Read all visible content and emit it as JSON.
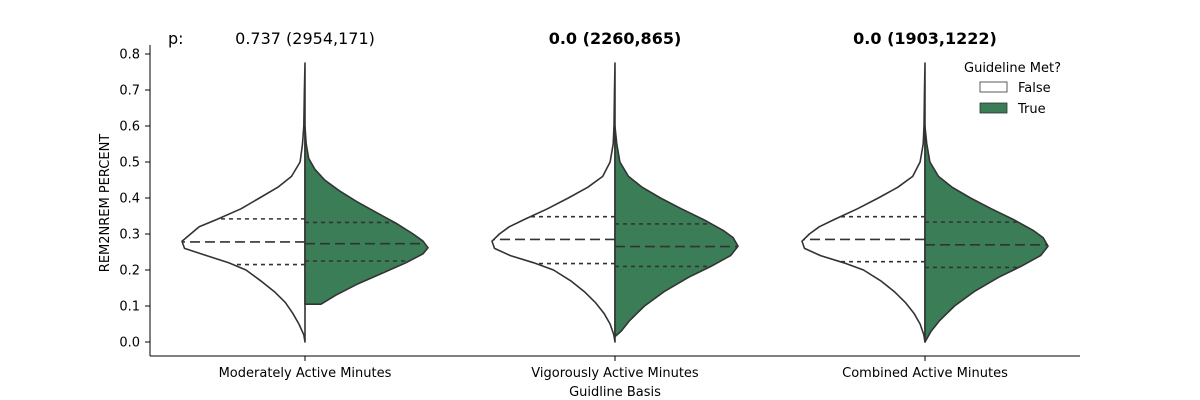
{
  "chart_data": {
    "type": "violin",
    "xlabel": "Guidline Basis",
    "ylabel": "REM2NREM PERCENT",
    "ylim": [
      -0.04,
      0.82
    ],
    "yticks": [
      0.0,
      0.1,
      0.2,
      0.3,
      0.4,
      0.5,
      0.6,
      0.7,
      0.8
    ],
    "ytick_labels": [
      "0.0",
      "0.1",
      "0.2",
      "0.3",
      "0.4",
      "0.5",
      "0.6",
      "0.7",
      "0.8"
    ],
    "categories": [
      "Moderately Active Minutes",
      "Vigorously Active Minutes",
      "Combined Active Minutes"
    ],
    "p_prefix": "p:",
    "p_values": [
      {
        "text": "0.737 (2954,171)",
        "bold": false
      },
      {
        "text": "0.0 (2260,865)",
        "bold": true
      },
      {
        "text": "0.0 (1903,1222)",
        "bold": true
      }
    ],
    "legend": {
      "title": "Guideline Met?",
      "position": "upper right",
      "entries": [
        {
          "label": "False",
          "color": "#ffffff"
        },
        {
          "label": "True",
          "color": "#3a7d57"
        }
      ]
    },
    "series": [
      {
        "name": "False",
        "side": "left",
        "color": "#ffffff",
        "violins": [
          {
            "q1": 0.215,
            "median": 0.278,
            "q3": 0.342,
            "profile": [
              [
                0.0,
                0.0
              ],
              [
                0.02,
                0.01
              ],
              [
                0.05,
                0.05
              ],
              [
                0.08,
                0.1
              ],
              [
                0.11,
                0.16
              ],
              [
                0.14,
                0.25
              ],
              [
                0.17,
                0.36
              ],
              [
                0.2,
                0.48
              ],
              [
                0.22,
                0.62
              ],
              [
                0.24,
                0.8
              ],
              [
                0.26,
                0.98
              ],
              [
                0.28,
                1.0
              ],
              [
                0.3,
                0.93
              ],
              [
                0.32,
                0.86
              ],
              [
                0.34,
                0.72
              ],
              [
                0.37,
                0.52
              ],
              [
                0.4,
                0.37
              ],
              [
                0.43,
                0.22
              ],
              [
                0.46,
                0.11
              ],
              [
                0.5,
                0.04
              ],
              [
                0.55,
                0.02
              ],
              [
                0.6,
                0.01
              ],
              [
                0.7,
                0.005
              ],
              [
                0.775,
                0.0
              ]
            ]
          },
          {
            "q1": 0.218,
            "median": 0.285,
            "q3": 0.348,
            "profile": [
              [
                0.0,
                0.0
              ],
              [
                0.02,
                0.01
              ],
              [
                0.05,
                0.04
              ],
              [
                0.08,
                0.09
              ],
              [
                0.11,
                0.16
              ],
              [
                0.14,
                0.25
              ],
              [
                0.17,
                0.36
              ],
              [
                0.2,
                0.5
              ],
              [
                0.22,
                0.66
              ],
              [
                0.24,
                0.85
              ],
              [
                0.26,
                0.98
              ],
              [
                0.28,
                1.0
              ],
              [
                0.3,
                0.94
              ],
              [
                0.32,
                0.86
              ],
              [
                0.34,
                0.74
              ],
              [
                0.37,
                0.55
              ],
              [
                0.4,
                0.38
              ],
              [
                0.43,
                0.22
              ],
              [
                0.46,
                0.1
              ],
              [
                0.5,
                0.04
              ],
              [
                0.55,
                0.015
              ],
              [
                0.6,
                0.008
              ],
              [
                0.7,
                0.004
              ],
              [
                0.775,
                0.0
              ]
            ]
          },
          {
            "q1": 0.223,
            "median": 0.285,
            "q3": 0.348,
            "profile": [
              [
                0.0,
                0.0
              ],
              [
                0.02,
                0.01
              ],
              [
                0.05,
                0.04
              ],
              [
                0.08,
                0.09
              ],
              [
                0.11,
                0.16
              ],
              [
                0.14,
                0.25
              ],
              [
                0.17,
                0.36
              ],
              [
                0.2,
                0.5
              ],
              [
                0.22,
                0.66
              ],
              [
                0.24,
                0.85
              ],
              [
                0.26,
                0.98
              ],
              [
                0.28,
                1.0
              ],
              [
                0.3,
                0.94
              ],
              [
                0.32,
                0.86
              ],
              [
                0.34,
                0.74
              ],
              [
                0.37,
                0.55
              ],
              [
                0.4,
                0.38
              ],
              [
                0.43,
                0.22
              ],
              [
                0.46,
                0.1
              ],
              [
                0.5,
                0.04
              ],
              [
                0.55,
                0.015
              ],
              [
                0.6,
                0.008
              ],
              [
                0.7,
                0.004
              ],
              [
                0.775,
                0.0
              ]
            ]
          }
        ]
      },
      {
        "name": "True",
        "side": "right",
        "color": "#3a7d57",
        "violins": [
          {
            "q1": 0.225,
            "median": 0.273,
            "q3": 0.332,
            "profile": [
              [
                0.105,
                0.0
              ],
              [
                0.105,
                0.13
              ],
              [
                0.13,
                0.25
              ],
              [
                0.16,
                0.42
              ],
              [
                0.19,
                0.62
              ],
              [
                0.22,
                0.82
              ],
              [
                0.245,
                0.96
              ],
              [
                0.262,
                1.0
              ],
              [
                0.28,
                0.96
              ],
              [
                0.3,
                0.88
              ],
              [
                0.33,
                0.74
              ],
              [
                0.36,
                0.58
              ],
              [
                0.39,
                0.42
              ],
              [
                0.42,
                0.28
              ],
              [
                0.45,
                0.16
              ],
              [
                0.48,
                0.08
              ],
              [
                0.51,
                0.03
              ],
              [
                0.55,
                0.01
              ],
              [
                0.598,
                0.0
              ]
            ]
          },
          {
            "q1": 0.21,
            "median": 0.265,
            "q3": 0.328,
            "profile": [
              [
                0.015,
                0.0
              ],
              [
                0.03,
                0.05
              ],
              [
                0.06,
                0.12
              ],
              [
                0.1,
                0.24
              ],
              [
                0.14,
                0.4
              ],
              [
                0.18,
                0.6
              ],
              [
                0.21,
                0.78
              ],
              [
                0.24,
                0.94
              ],
              [
                0.266,
                1.0
              ],
              [
                0.29,
                0.96
              ],
              [
                0.31,
                0.88
              ],
              [
                0.34,
                0.72
              ],
              [
                0.37,
                0.54
              ],
              [
                0.4,
                0.37
              ],
              [
                0.43,
                0.22
              ],
              [
                0.46,
                0.11
              ],
              [
                0.5,
                0.04
              ],
              [
                0.55,
                0.015
              ],
              [
                0.598,
                0.0
              ]
            ]
          },
          {
            "q1": 0.207,
            "median": 0.27,
            "q3": 0.333,
            "profile": [
              [
                0.0,
                0.0
              ],
              [
                0.03,
                0.05
              ],
              [
                0.06,
                0.12
              ],
              [
                0.1,
                0.24
              ],
              [
                0.14,
                0.4
              ],
              [
                0.18,
                0.6
              ],
              [
                0.21,
                0.78
              ],
              [
                0.24,
                0.94
              ],
              [
                0.266,
                1.0
              ],
              [
                0.29,
                0.96
              ],
              [
                0.31,
                0.88
              ],
              [
                0.34,
                0.72
              ],
              [
                0.37,
                0.54
              ],
              [
                0.4,
                0.37
              ],
              [
                0.43,
                0.22
              ],
              [
                0.46,
                0.11
              ],
              [
                0.5,
                0.04
              ],
              [
                0.55,
                0.015
              ],
              [
                0.598,
                0.0
              ]
            ]
          }
        ]
      }
    ]
  }
}
